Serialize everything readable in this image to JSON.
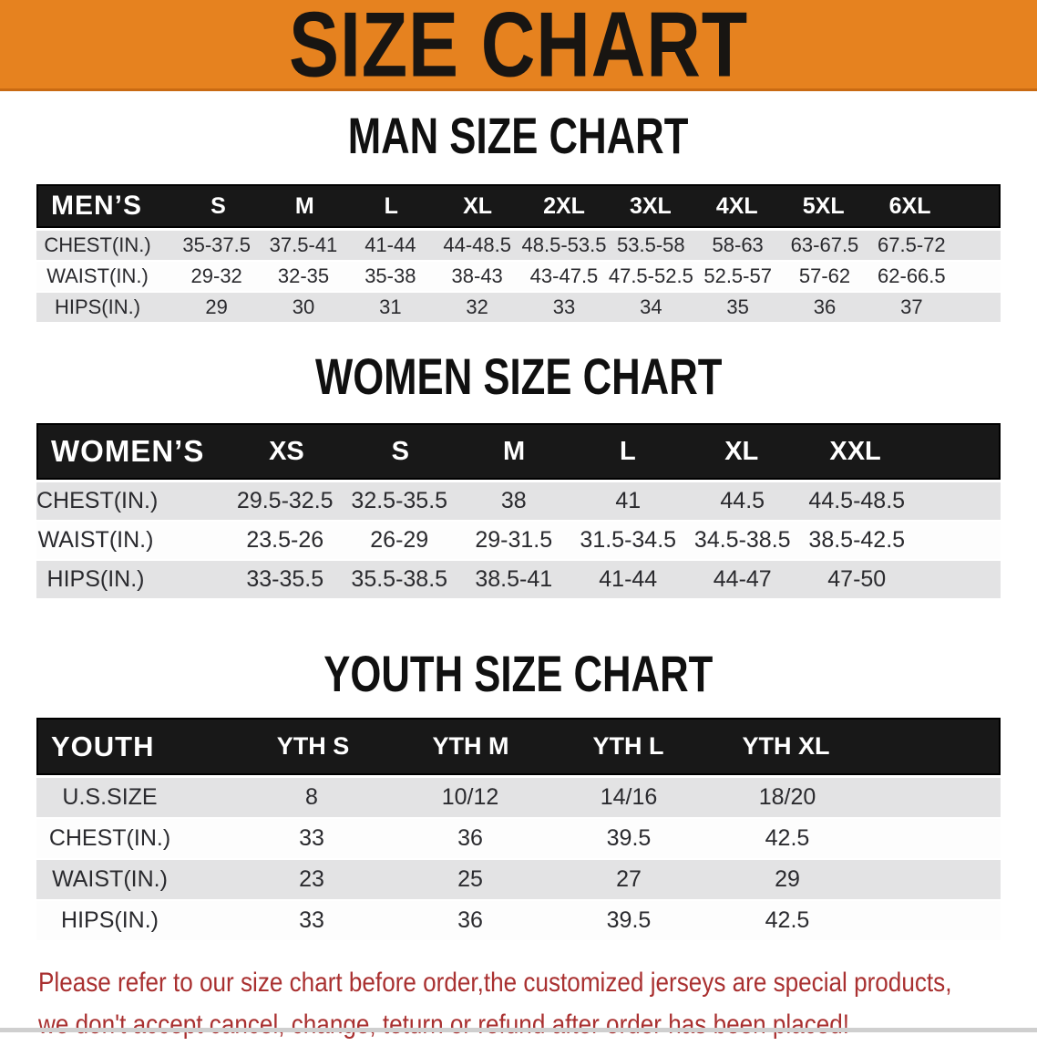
{
  "banner": {
    "title": "SIZE CHART",
    "bg_color": "#E6821F",
    "text_color": "#181512"
  },
  "colors": {
    "table_header_bg": "#181818",
    "row_alt_bg": "#E3E3E4",
    "notice_color": "#A93030"
  },
  "men": {
    "heading": "MAN SIZE CHART",
    "label": "MEN’S",
    "sizes": [
      "S",
      "M",
      "L",
      "XL",
      "2XL",
      "3XL",
      "4XL",
      "5XL",
      "6XL"
    ],
    "rows": [
      {
        "label": "CHEST(IN.)",
        "values": [
          "35-37.5",
          "37.5-41",
          "41-44",
          "44-48.5",
          "48.5-53.5",
          "53.5-58",
          "58-63",
          "63-67.5",
          "67.5-72"
        ]
      },
      {
        "label": "WAIST(IN.)",
        "values": [
          "29-32",
          "32-35",
          "35-38",
          "38-43",
          "43-47.5",
          "47.5-52.5",
          "52.5-57",
          "57-62",
          "62-66.5"
        ]
      },
      {
        "label": "HIPS(IN.)",
        "values": [
          "29",
          "30",
          "31",
          "32",
          "33",
          "34",
          "35",
          "36",
          "37"
        ]
      }
    ]
  },
  "women": {
    "heading": "WOMEN SIZE CHART",
    "label": "WOMEN’S",
    "sizes": [
      "XS",
      "S",
      "M",
      "L",
      "XL",
      "XXL"
    ],
    "rows": [
      {
        "label": "CHEST(IN.)",
        "values": [
          "29.5-32.5",
          "32.5-35.5",
          "38",
          "41",
          "44.5",
          "44.5-48.5"
        ]
      },
      {
        "label": "WAIST(IN.)",
        "values": [
          "23.5-26",
          "26-29",
          "29-31.5",
          "31.5-34.5",
          "34.5-38.5",
          "38.5-42.5"
        ]
      },
      {
        "label": "HIPS(IN.)",
        "values": [
          "33-35.5",
          "35.5-38.5",
          "38.5-41",
          "41-44",
          "44-47",
          "47-50"
        ]
      }
    ]
  },
  "youth": {
    "heading": "YOUTH SIZE CHART",
    "label": "YOUTH",
    "sizes": [
      "YTH S",
      "YTH M",
      "YTH L",
      "YTH XL"
    ],
    "rows": [
      {
        "label": "U.S.SIZE",
        "values": [
          "8",
          "10/12",
          "14/16",
          "18/20"
        ]
      },
      {
        "label": "CHEST(IN.)",
        "values": [
          "33",
          "36",
          "39.5",
          "42.5"
        ]
      },
      {
        "label": "WAIST(IN.)",
        "values": [
          "23",
          "25",
          "27",
          "29"
        ]
      },
      {
        "label": "HIPS(IN.)",
        "values": [
          "33",
          "36",
          "39.5",
          "42.5"
        ]
      }
    ]
  },
  "notice": {
    "line1": "Please refer to our size chart before order,the customized jerseys are special products,",
    "line2": "we don't accept cancel, change, teturn or refund after order has been placed!"
  }
}
